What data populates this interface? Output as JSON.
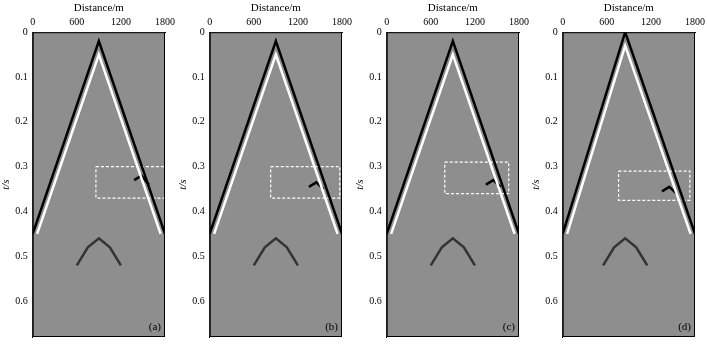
{
  "chart_data": [
    {
      "type": "line",
      "panel_label": "(a)",
      "x_label": "Distance/m",
      "y_label": "t/s",
      "xlim": [
        0,
        1800
      ],
      "xticks": [
        0,
        600,
        1200,
        1800
      ],
      "ylim": [
        0,
        0.68
      ],
      "yticks": [
        0,
        0.1,
        0.2,
        0.3,
        0.4,
        0.5,
        0.6
      ],
      "grid": false,
      "series": [
        {
          "x": [
            0,
            900,
            1800
          ],
          "values": [
            0.45,
            0.02,
            0.45
          ],
          "color": "#000000",
          "line_style": "solid"
        },
        {
          "x": [
            60,
            900,
            1740
          ],
          "values": [
            0.45,
            0.05,
            0.45
          ],
          "color": "#ffffff",
          "line_style": "solid"
        },
        {
          "x": [
            600,
            750,
            900,
            1050,
            1200
          ],
          "values": [
            0.52,
            0.48,
            0.46,
            0.48,
            0.52
          ],
          "color": "#333333",
          "line_style": "solid"
        },
        {
          "x": [
            1380,
            1480,
            1580
          ],
          "values": [
            0.33,
            0.32,
            0.34
          ],
          "color": "#000000",
          "line_style": "solid"
        },
        {
          "x": [
            860,
            1800,
            1800,
            860,
            860
          ],
          "values": [
            0.3,
            0.3,
            0.37,
            0.37,
            0.3
          ],
          "color": "#ffffff",
          "line_style": "dashed"
        }
      ]
    },
    {
      "type": "line",
      "panel_label": "(b)",
      "x_label": "Distance/m",
      "y_label": "t/s",
      "xlim": [
        0,
        1800
      ],
      "xticks": [
        0,
        600,
        1200,
        1800
      ],
      "ylim": [
        0,
        0.68
      ],
      "yticks": [
        0,
        0.1,
        0.2,
        0.3,
        0.4,
        0.5,
        0.6
      ],
      "grid": false,
      "series": [
        {
          "x": [
            0,
            900,
            1800
          ],
          "values": [
            0.45,
            0.02,
            0.45
          ],
          "color": "#000000",
          "line_style": "solid"
        },
        {
          "x": [
            60,
            900,
            1740
          ],
          "values": [
            0.45,
            0.05,
            0.45
          ],
          "color": "#ffffff",
          "line_style": "solid"
        },
        {
          "x": [
            600,
            750,
            900,
            1050,
            1200
          ],
          "values": [
            0.52,
            0.48,
            0.46,
            0.48,
            0.52
          ],
          "color": "#333333",
          "line_style": "solid"
        },
        {
          "x": [
            1350,
            1450,
            1550
          ],
          "values": [
            0.345,
            0.335,
            0.35
          ],
          "color": "#000000",
          "line_style": "solid"
        },
        {
          "x": [
            830,
            1770,
            1770,
            830,
            830
          ],
          "values": [
            0.3,
            0.3,
            0.37,
            0.37,
            0.3
          ],
          "color": "#ffffff",
          "line_style": "dashed"
        }
      ]
    },
    {
      "type": "line",
      "panel_label": "(c)",
      "x_label": "Distance/m",
      "y_label": "t/s",
      "xlim": [
        0,
        1800
      ],
      "xticks": [
        0,
        600,
        1200,
        1800
      ],
      "ylim": [
        0,
        0.68
      ],
      "yticks": [
        0,
        0.1,
        0.2,
        0.3,
        0.4,
        0.5,
        0.6
      ],
      "grid": false,
      "series": [
        {
          "x": [
            0,
            900,
            1800
          ],
          "values": [
            0.45,
            0.02,
            0.45
          ],
          "color": "#000000",
          "line_style": "solid"
        },
        {
          "x": [
            60,
            900,
            1740
          ],
          "values": [
            0.45,
            0.05,
            0.45
          ],
          "color": "#ffffff",
          "line_style": "solid"
        },
        {
          "x": [
            600,
            750,
            900,
            1050,
            1200
          ],
          "values": [
            0.52,
            0.48,
            0.46,
            0.48,
            0.52
          ],
          "color": "#333333",
          "line_style": "solid"
        },
        {
          "x": [
            1350,
            1450,
            1550
          ],
          "values": [
            0.34,
            0.33,
            0.345
          ],
          "color": "#000000",
          "line_style": "solid"
        },
        {
          "x": [
            790,
            1660,
            1660,
            790,
            790
          ],
          "values": [
            0.29,
            0.29,
            0.36,
            0.36,
            0.29
          ],
          "color": "#ffffff",
          "line_style": "dashed"
        }
      ]
    },
    {
      "type": "line",
      "panel_label": "(d)",
      "x_label": "Distance/m",
      "y_label": "t/s",
      "xlim": [
        0,
        1800
      ],
      "xticks": [
        0,
        600,
        1200,
        1800
      ],
      "ylim": [
        0,
        0.68
      ],
      "yticks": [
        0,
        0.1,
        0.2,
        0.3,
        0.4,
        0.5,
        0.6
      ],
      "grid": false,
      "series": [
        {
          "x": [
            0,
            850,
            1800
          ],
          "values": [
            0.45,
            0.0,
            0.45
          ],
          "color": "#000000",
          "line_style": "solid"
        },
        {
          "x": [
            60,
            850,
            1740
          ],
          "values": [
            0.45,
            0.03,
            0.45
          ],
          "color": "#ffffff",
          "line_style": "solid"
        },
        {
          "x": [
            550,
            700,
            850,
            1000,
            1150
          ],
          "values": [
            0.52,
            0.48,
            0.46,
            0.48,
            0.52
          ],
          "color": "#333333",
          "line_style": "solid"
        },
        {
          "x": [
            1350,
            1450,
            1550
          ],
          "values": [
            0.355,
            0.345,
            0.36
          ],
          "color": "#000000",
          "line_style": "solid"
        },
        {
          "x": [
            760,
            1730,
            1730,
            760,
            760
          ],
          "values": [
            0.31,
            0.31,
            0.375,
            0.375,
            0.31
          ],
          "color": "#ffffff",
          "line_style": "dashed"
        }
      ]
    }
  ]
}
